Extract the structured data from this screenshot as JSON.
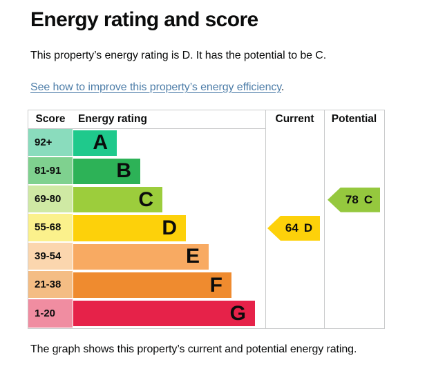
{
  "page": {
    "title": "Energy rating and score",
    "intro": "This property’s energy rating is D. It has the potential to be C.",
    "link_text": "See how to improve this property’s energy efficiency",
    "link_suffix": ".",
    "caption": "The graph shows this property’s current and potential energy rating."
  },
  "chart_data": {
    "type": "bar",
    "title": "Energy rating and score",
    "headers": [
      "Score",
      "Energy rating",
      "Current",
      "Potential"
    ],
    "bands": [
      {
        "grade": "A",
        "score_range": "92+",
        "width_pct": 22.7,
        "bar_color": "#1fc98c",
        "score_bg": "#8adcbd"
      },
      {
        "grade": "B",
        "score_range": "81-91",
        "width_pct": 34.9,
        "bar_color": "#2db257",
        "score_bg": "#7fd18f"
      },
      {
        "grade": "C",
        "score_range": "69-80",
        "width_pct": 46.4,
        "bar_color": "#9ccd3c",
        "score_bg": "#cfe9a4"
      },
      {
        "grade": "D",
        "score_range": "55-68",
        "width_pct": 58.6,
        "bar_color": "#fdd10a",
        "score_bg": "#fbf18c"
      },
      {
        "grade": "E",
        "score_range": "39-54",
        "width_pct": 70.5,
        "bar_color": "#f8aa62",
        "score_bg": "#fbd6ae"
      },
      {
        "grade": "F",
        "score_range": "21-38",
        "width_pct": 82.4,
        "bar_color": "#ef8b2f",
        "score_bg": "#f4bd84"
      },
      {
        "grade": "G",
        "score_range": "1-20",
        "width_pct": 94.6,
        "bar_color": "#e62249",
        "score_bg": "#f08da1"
      }
    ],
    "markers": {
      "current": {
        "score": "64",
        "grade": "D",
        "band_index": 3,
        "color": "#fdd10a",
        "column": "Current"
      },
      "potential": {
        "score": "78",
        "grade": "C",
        "band_index": 2,
        "color": "#95c83e",
        "column": "Potential"
      }
    }
  }
}
